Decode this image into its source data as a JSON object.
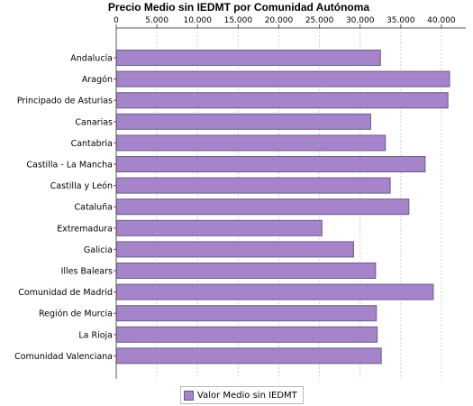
{
  "chart_data": {
    "type": "bar",
    "orientation": "horizontal",
    "title": "Precio Medio sin IEDMT por Comunidad Autónoma",
    "categories": [
      "Andalucía",
      "Aragón",
      "Principado de Asturias",
      "Canarias",
      "Cantabria",
      "Castilla - La Mancha",
      "Castilla y León",
      "Cataluña",
      "Extremadura",
      "Galicia",
      "Illes Balears",
      "Comunidad de Madrid",
      "Región de Murcia",
      "La Rioja",
      "Comunidad Valenciana"
    ],
    "series": [
      {
        "name": "Valor Medio sin IEDMT",
        "color": "#a584c9",
        "values": [
          32500,
          41000,
          40800,
          31300,
          33100,
          38000,
          33700,
          36000,
          25300,
          29200,
          31900,
          39000,
          32000,
          32100,
          32600
        ]
      }
    ],
    "xlim": [
      0,
      43000
    ],
    "x_ticks": [
      0,
      5000,
      10000,
      15000,
      20000,
      25000,
      30000,
      35000,
      40000
    ],
    "x_tick_labels": [
      "0",
      "5.000",
      "10.000",
      "15.000",
      "20.000",
      "25.000",
      "30.000",
      "35.000",
      "40.000"
    ],
    "axis_position": "top",
    "grid": true,
    "legend_position": "bottom"
  }
}
